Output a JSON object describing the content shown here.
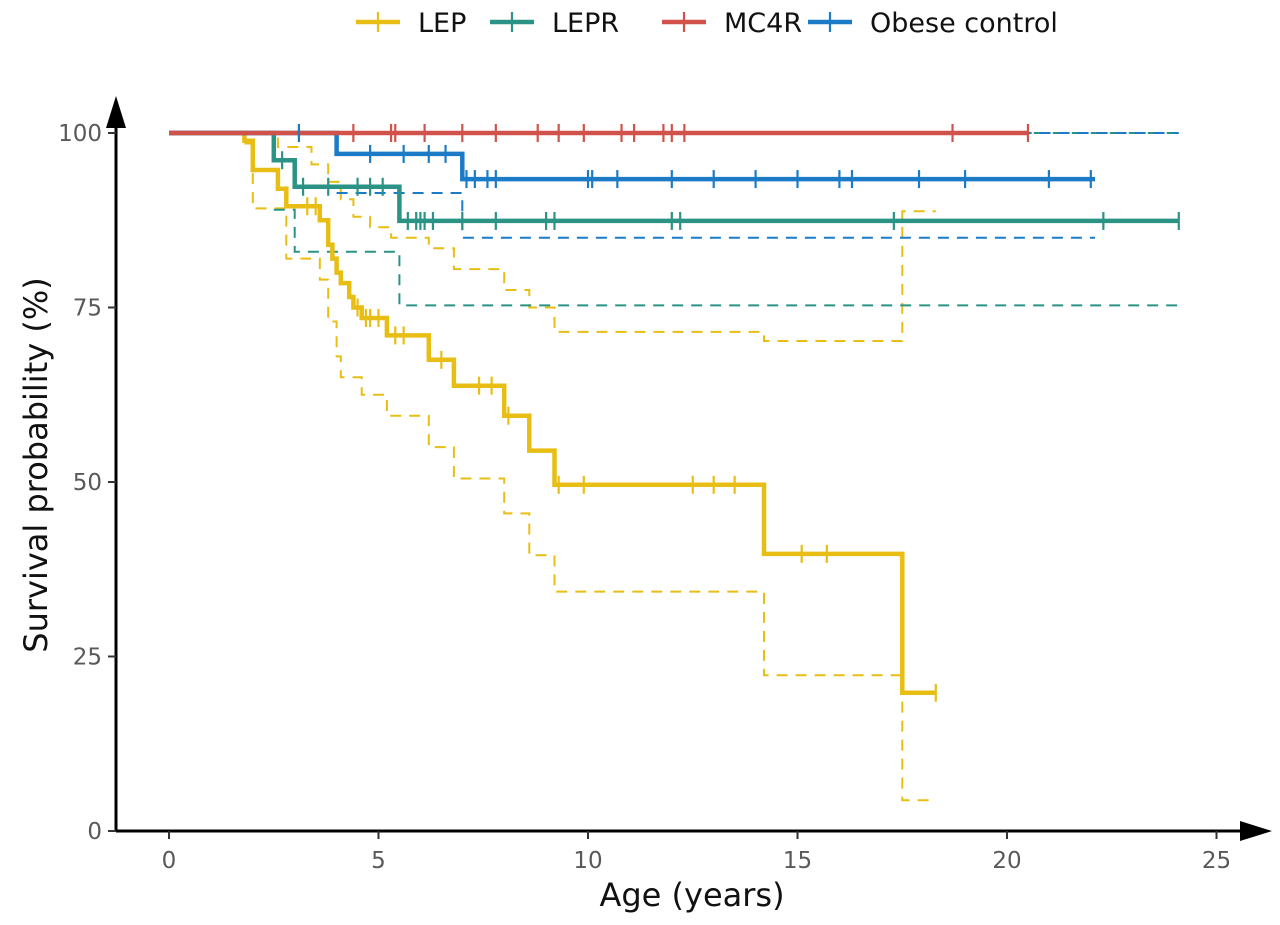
{
  "chart_data": {
    "type": "line",
    "subtype": "kaplan-meier survival curves with dashed confidence bands and censor tick marks",
    "xlabel": "Age (years)",
    "ylabel": "Survival probability (%)",
    "xlim": [
      -1.2,
      25.8
    ],
    "ylim": [
      0,
      100
    ],
    "x_ticks": [
      0,
      5,
      10,
      15,
      20,
      25
    ],
    "y_ticks": [
      0,
      25,
      50,
      75,
      100
    ],
    "grid": false,
    "legend_position": "top",
    "series": [
      {
        "name": "LEP",
        "color": "#E8BE14",
        "survival": [
          [
            0,
            100
          ],
          [
            1.8,
            100
          ],
          [
            1.8,
            98.9
          ],
          [
            2.0,
            98.9
          ],
          [
            2.0,
            94.7
          ],
          [
            2.6,
            94.7
          ],
          [
            2.6,
            92
          ],
          [
            2.8,
            92
          ],
          [
            2.8,
            89.5
          ],
          [
            3.6,
            89.5
          ],
          [
            3.6,
            87.5
          ],
          [
            3.8,
            87.5
          ],
          [
            3.8,
            84
          ],
          [
            3.9,
            84
          ],
          [
            3.9,
            82
          ],
          [
            4.0,
            82
          ],
          [
            4.0,
            80
          ],
          [
            4.1,
            80
          ],
          [
            4.1,
            78.5
          ],
          [
            4.3,
            78.5
          ],
          [
            4.3,
            76.5
          ],
          [
            4.4,
            76.5
          ],
          [
            4.4,
            75
          ],
          [
            4.6,
            75
          ],
          [
            4.6,
            73.5
          ],
          [
            5.2,
            73.5
          ],
          [
            5.2,
            71
          ],
          [
            6.2,
            71
          ],
          [
            6.2,
            67.5
          ],
          [
            6.8,
            67.5
          ],
          [
            6.8,
            63.8
          ],
          [
            8.0,
            63.8
          ],
          [
            8.0,
            59.5
          ],
          [
            8.6,
            59.5
          ],
          [
            8.6,
            54.5
          ],
          [
            9.2,
            54.5
          ],
          [
            9.2,
            49.6
          ],
          [
            14.2,
            49.6
          ],
          [
            14.2,
            39.7
          ],
          [
            17.5,
            39.7
          ],
          [
            17.5,
            19.8
          ],
          [
            18.3,
            19.8
          ]
        ],
        "censor_x": [
          3.3,
          3.5,
          4.5,
          4.7,
          4.8,
          5.0,
          5.4,
          5.6,
          6.5,
          7.4,
          7.7,
          8.1,
          9.3,
          9.9,
          12.5,
          13.0,
          13.5,
          15.1,
          15.7,
          18.3
        ],
        "ci_upper": [
          [
            1.8,
            100
          ],
          [
            2.6,
            100
          ],
          [
            2.6,
            98
          ],
          [
            3.4,
            98
          ],
          [
            3.4,
            95.5
          ],
          [
            3.8,
            95.5
          ],
          [
            3.8,
            93
          ],
          [
            4.1,
            93
          ],
          [
            4.1,
            90.5
          ],
          [
            4.4,
            90.5
          ],
          [
            4.4,
            88
          ],
          [
            4.8,
            88
          ],
          [
            4.8,
            86.5
          ],
          [
            5.3,
            86.5
          ],
          [
            5.3,
            85
          ],
          [
            6.2,
            85
          ],
          [
            6.2,
            83.5
          ],
          [
            6.8,
            83.5
          ],
          [
            6.8,
            80.5
          ],
          [
            8.0,
            80.5
          ],
          [
            8.0,
            77.5
          ],
          [
            8.6,
            77.5
          ],
          [
            8.6,
            75
          ],
          [
            9.2,
            75
          ],
          [
            9.2,
            71.5
          ],
          [
            14.2,
            71.5
          ],
          [
            14.2,
            70.2
          ],
          [
            17.5,
            70.2
          ],
          [
            17.5,
            88.8
          ],
          [
            18.3,
            88.8
          ]
        ],
        "ci_lower": [
          [
            1.8,
            98.5
          ],
          [
            2.0,
            98.5
          ],
          [
            2.0,
            89.2
          ],
          [
            2.8,
            89.2
          ],
          [
            2.8,
            82
          ],
          [
            3.6,
            82
          ],
          [
            3.6,
            79
          ],
          [
            3.8,
            79
          ],
          [
            3.8,
            73
          ],
          [
            4.0,
            73
          ],
          [
            4.0,
            68
          ],
          [
            4.1,
            68
          ],
          [
            4.1,
            65
          ],
          [
            4.6,
            65
          ],
          [
            4.6,
            62.5
          ],
          [
            5.2,
            62.5
          ],
          [
            5.2,
            59.5
          ],
          [
            6.2,
            59.5
          ],
          [
            6.2,
            55
          ],
          [
            6.8,
            55
          ],
          [
            6.8,
            50.5
          ],
          [
            8.0,
            50.5
          ],
          [
            8.0,
            45.5
          ],
          [
            8.6,
            45.5
          ],
          [
            8.6,
            39.5
          ],
          [
            9.2,
            39.5
          ],
          [
            9.2,
            34.3
          ],
          [
            14.2,
            34.3
          ],
          [
            14.2,
            22.3
          ],
          [
            17.5,
            22.3
          ],
          [
            17.5,
            4.4
          ],
          [
            18.3,
            4.4
          ]
        ]
      },
      {
        "name": "LEPR",
        "color": "#2A9385",
        "survival": [
          [
            0,
            100
          ],
          [
            2.5,
            100
          ],
          [
            2.5,
            96.1
          ],
          [
            3.0,
            96.1
          ],
          [
            3.0,
            92.3
          ],
          [
            5.5,
            92.3
          ],
          [
            5.5,
            87.4
          ],
          [
            24.1,
            87.4
          ]
        ],
        "censor_x": [
          2.7,
          3.2,
          3.8,
          4.5,
          4.8,
          5.1,
          5.7,
          5.9,
          6.0,
          6.1,
          6.3,
          7.0,
          7.8,
          9.0,
          9.2,
          12.0,
          12.2,
          17.3,
          22.3,
          24.1
        ],
        "ci_upper": [
          [
            2.5,
            100
          ],
          [
            7.0,
            100
          ],
          [
            24.1,
            100
          ]
        ],
        "ci_lower": [
          [
            2.5,
            89
          ],
          [
            3.0,
            89
          ],
          [
            3.0,
            83
          ],
          [
            5.5,
            83
          ],
          [
            5.5,
            75.3
          ],
          [
            24.1,
            75.3
          ]
        ]
      },
      {
        "name": "MC4R",
        "color": "#D0524A",
        "survival": [
          [
            0,
            100
          ],
          [
            20.5,
            100
          ]
        ],
        "censor_x": [
          4.4,
          5.3,
          5.4,
          6.1,
          7.0,
          7.8,
          8.8,
          9.3,
          9.9,
          10.8,
          11.1,
          11.8,
          12.0,
          12.3,
          18.7,
          20.5
        ],
        "ci_upper": [],
        "ci_lower": []
      },
      {
        "name": "Obese control",
        "color": "#1B7BC7",
        "survival": [
          [
            0,
            100
          ],
          [
            4.0,
            100
          ],
          [
            4.0,
            97.0
          ],
          [
            7.0,
            97.0
          ],
          [
            7.0,
            93.4
          ],
          [
            22.1,
            93.4
          ]
        ],
        "censor_x": [
          3.1,
          4.8,
          5.6,
          6.2,
          6.6,
          7.1,
          7.3,
          7.6,
          7.8,
          10.0,
          10.1,
          10.7,
          12.0,
          13.0,
          14.0,
          15.0,
          16.0,
          16.3,
          17.9,
          19.0,
          21.0,
          22.0
        ],
        "ci_upper": [
          [
            4.0,
            100
          ],
          [
            24.1,
            100
          ]
        ],
        "ci_lower": [
          [
            4.0,
            91.4
          ],
          [
            7.0,
            91.4
          ],
          [
            7.0,
            85
          ],
          [
            22.1,
            85
          ]
        ]
      }
    ]
  }
}
